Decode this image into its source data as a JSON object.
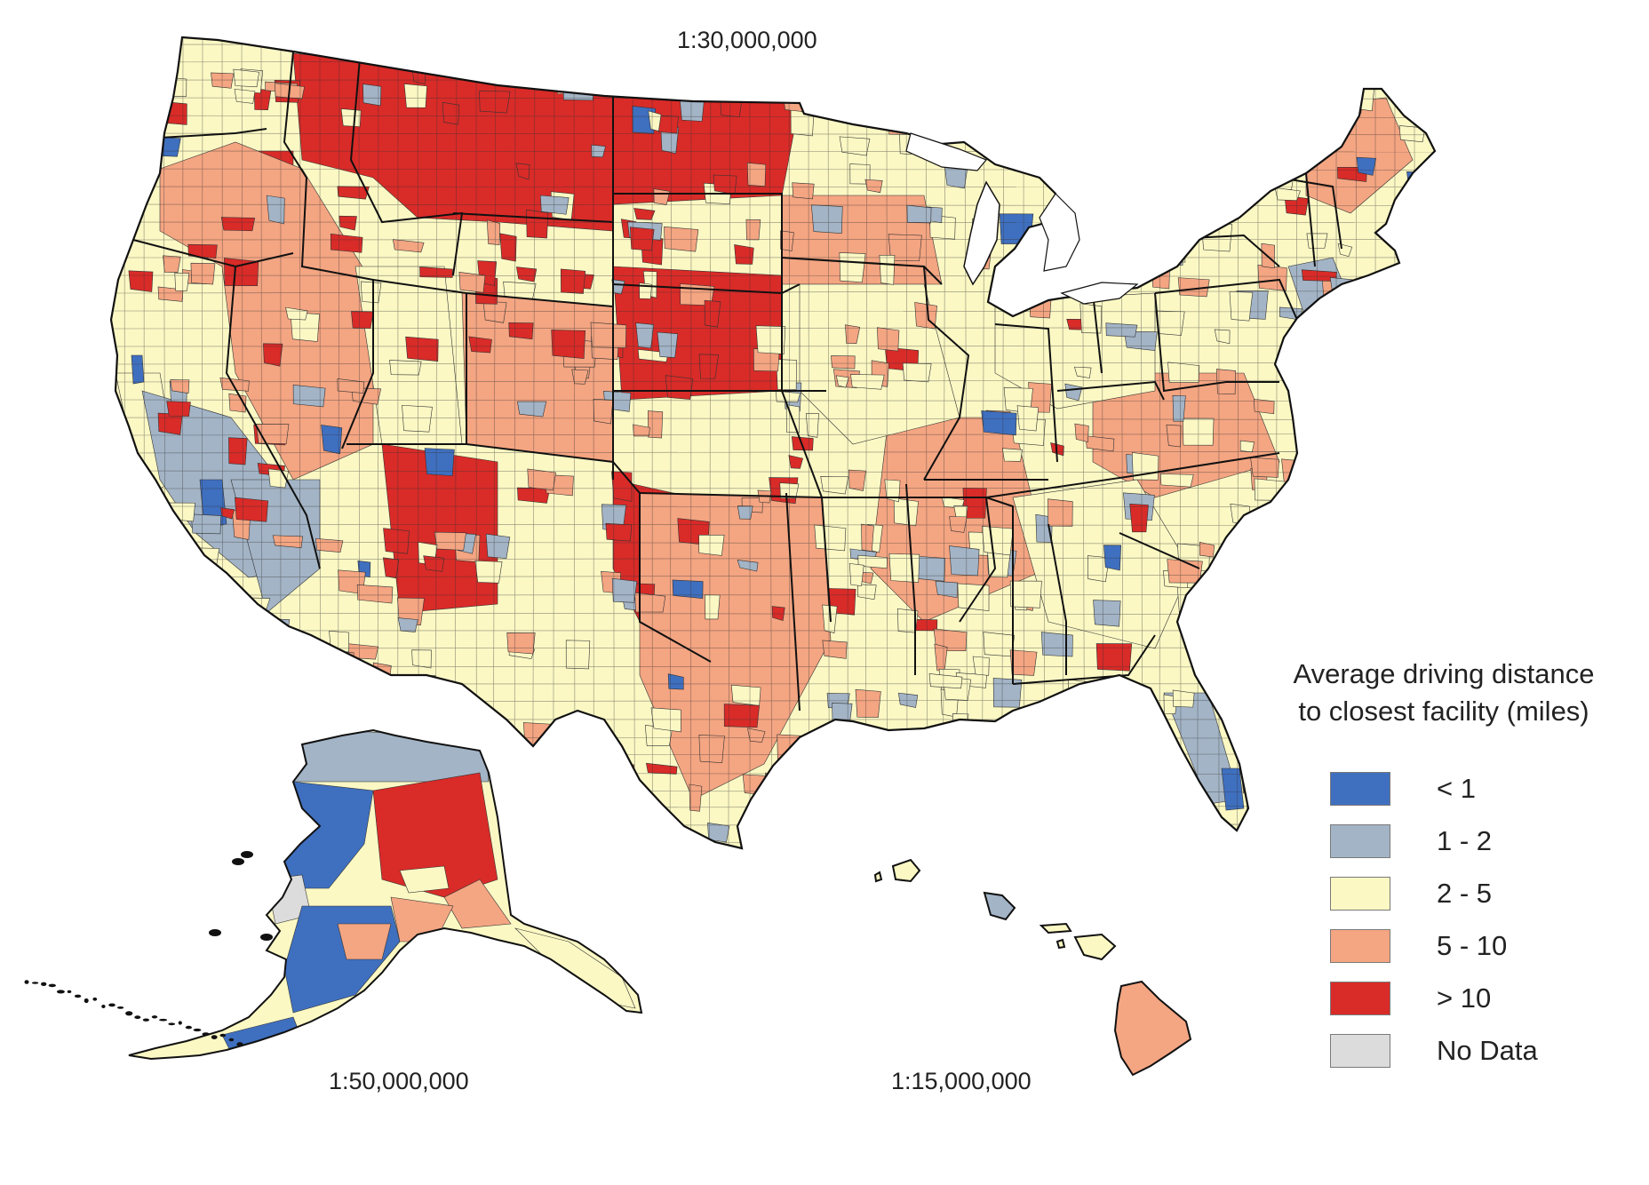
{
  "scales": {
    "conus": "1:30,000,000",
    "alaska": "1:50,000,000",
    "hawaii": "1:15,000,000"
  },
  "legend": {
    "title_line1": "Average driving distance",
    "title_line2": "to closest facility (miles)",
    "items": [
      {
        "label": "< 1",
        "color": "#3f6fbf"
      },
      {
        "label": "1 - 2",
        "color": "#a3b4c6"
      },
      {
        "label": "2 - 5",
        "color": "#fbf8c4"
      },
      {
        "label": "5 - 10",
        "color": "#f4a582"
      },
      {
        "label": "> 10",
        "color": "#d92b28"
      },
      {
        "label": "No Data",
        "color": "#dcdcdc"
      }
    ]
  },
  "map_colors": {
    "lt1": "#3f6fbf",
    "d1_2": "#a3b4c6",
    "d2_5": "#fbf8c4",
    "d5_10": "#f4a582",
    "gt10": "#d92b28",
    "nodata": "#dcdcdc",
    "boundary": "#111111"
  }
}
